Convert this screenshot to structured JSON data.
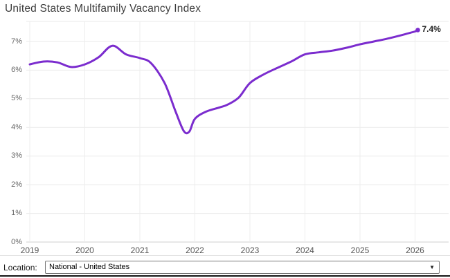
{
  "header": {
    "title": "United States Multifamily Vacancy Index"
  },
  "chart_data": {
    "type": "line",
    "title": "United States Multifamily Vacancy Index",
    "x_ticks": [
      "2019",
      "2020",
      "2021",
      "2022",
      "2023",
      "2024",
      "2025",
      "2026"
    ],
    "y_ticks": [
      {
        "value": 0,
        "label": "0%"
      },
      {
        "value": 1,
        "label": "1%"
      },
      {
        "value": 2,
        "label": "2%"
      },
      {
        "value": 3,
        "label": "3%"
      },
      {
        "value": 4,
        "label": "4%"
      },
      {
        "value": 5,
        "label": "5%"
      },
      {
        "value": 6,
        "label": "6%"
      },
      {
        "value": 7,
        "label": "7%"
      }
    ],
    "ylim": [
      0,
      7.7
    ],
    "xlim": [
      2019,
      2026.6
    ],
    "grid": true,
    "legend": "none",
    "line_color": "#7b2cce",
    "grid_color": "#e9e9e9",
    "axis_line_color": "#cfcfcf",
    "end_point_label": "7.4%",
    "series": [
      {
        "name": "National - United States",
        "points": [
          [
            2019.0,
            6.2
          ],
          [
            2019.25,
            6.3
          ],
          [
            2019.5,
            6.27
          ],
          [
            2019.75,
            6.11
          ],
          [
            2020.0,
            6.2
          ],
          [
            2020.25,
            6.45
          ],
          [
            2020.5,
            6.85
          ],
          [
            2020.75,
            6.55
          ],
          [
            2021.0,
            6.42
          ],
          [
            2021.2,
            6.25
          ],
          [
            2021.45,
            5.55
          ],
          [
            2021.65,
            4.55
          ],
          [
            2021.8,
            3.87
          ],
          [
            2021.9,
            3.86
          ],
          [
            2022.0,
            4.3
          ],
          [
            2022.2,
            4.55
          ],
          [
            2022.45,
            4.7
          ],
          [
            2022.6,
            4.8
          ],
          [
            2022.8,
            5.05
          ],
          [
            2023.0,
            5.55
          ],
          [
            2023.25,
            5.85
          ],
          [
            2023.5,
            6.08
          ],
          [
            2023.75,
            6.3
          ],
          [
            2024.0,
            6.55
          ],
          [
            2024.25,
            6.62
          ],
          [
            2024.5,
            6.68
          ],
          [
            2024.75,
            6.78
          ],
          [
            2025.0,
            6.9
          ],
          [
            2025.25,
            7.0
          ],
          [
            2025.5,
            7.1
          ],
          [
            2025.75,
            7.22
          ],
          [
            2026.0,
            7.35
          ],
          [
            2026.05,
            7.4
          ]
        ]
      }
    ]
  },
  "footer": {
    "location_label": "Location:",
    "location_select": {
      "value": "National - United States",
      "dropdown_icon": "chevron-down-icon",
      "dropdown_glyph": "▼"
    }
  }
}
